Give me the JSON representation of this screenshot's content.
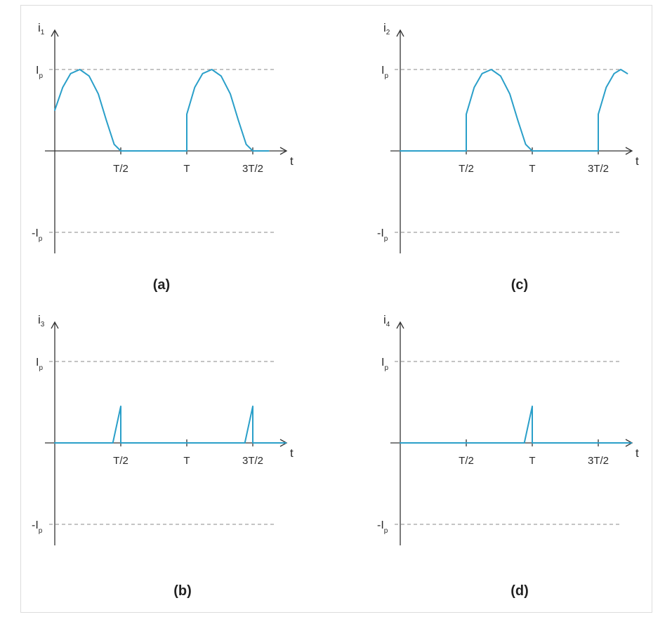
{
  "colors": {
    "axis": "#333333",
    "curve": "#2a9fc9",
    "dashed": "#8a8a8a",
    "text": "#2b2b2b"
  },
  "chart_data": [
    {
      "id": "a",
      "type": "line",
      "caption": "(a)",
      "ylabel_main": "i",
      "ylabel_sub": "1",
      "xlabel": "t",
      "x_ticks": [
        "T/2",
        "T",
        "3T/2"
      ],
      "levels": [
        {
          "main": "I",
          "sub": "p",
          "value": 1
        },
        {
          "main": "-I",
          "sub": "p",
          "value": -1
        }
      ],
      "xlim": [
        0,
        1.75
      ],
      "ylim": [
        -1.25,
        1.4
      ],
      "series": [
        {
          "x": [
            0,
            0.06,
            0.12,
            0.19,
            0.26,
            0.33,
            0.39,
            0.45,
            0.5,
            0.55,
            1.0,
            1.0,
            1.06,
            1.12,
            1.19,
            1.26,
            1.33,
            1.39,
            1.45,
            1.5,
            1.55,
            1.62
          ],
          "y": [
            0.5,
            0.78,
            0.95,
            1.0,
            0.92,
            0.7,
            0.38,
            0.08,
            0,
            0,
            0,
            0.45,
            0.78,
            0.95,
            1.0,
            0.92,
            0.7,
            0.38,
            0.08,
            0,
            0,
            0
          ]
        }
      ]
    },
    {
      "id": "c",
      "type": "line",
      "caption": "(c)",
      "ylabel_main": "i",
      "ylabel_sub": "2",
      "xlabel": "t",
      "x_ticks": [
        "T/2",
        "T",
        "3T/2"
      ],
      "levels": [
        {
          "main": "I",
          "sub": "p",
          "value": 1
        },
        {
          "main": "-I",
          "sub": "p",
          "value": -1
        }
      ],
      "xlim": [
        0,
        1.75
      ],
      "ylim": [
        -1.25,
        1.4
      ],
      "series": [
        {
          "x": [
            0,
            0.5,
            0.5,
            0.56,
            0.62,
            0.69,
            0.76,
            0.83,
            0.89,
            0.95,
            1.0,
            1.5,
            1.5,
            1.56,
            1.62,
            1.67,
            1.72
          ],
          "y": [
            0,
            0,
            0.45,
            0.78,
            0.95,
            1.0,
            0.92,
            0.7,
            0.38,
            0.08,
            0,
            0,
            0.45,
            0.78,
            0.95,
            1.0,
            0.95
          ]
        }
      ]
    },
    {
      "id": "b",
      "type": "line",
      "caption": "(b)",
      "ylabel_main": "i",
      "ylabel_sub": "3",
      "xlabel": "t",
      "x_ticks": [
        "T/2",
        "T",
        "3T/2"
      ],
      "levels": [
        {
          "main": "I",
          "sub": "p",
          "value": 1
        },
        {
          "main": "-I",
          "sub": "p",
          "value": -1
        }
      ],
      "xlim": [
        0,
        1.75
      ],
      "ylim": [
        -1.25,
        1.4
      ],
      "series": [
        {
          "x": [
            0,
            0.44,
            0.5,
            0.5,
            1.44,
            1.5,
            1.5,
            1.75
          ],
          "y": [
            0,
            0,
            0.45,
            0,
            0,
            0.45,
            0,
            0
          ]
        }
      ]
    },
    {
      "id": "d",
      "type": "line",
      "caption": "(d)",
      "ylabel_main": "i",
      "ylabel_sub": "4",
      "xlabel": "t",
      "x_ticks": [
        "T/2",
        "T",
        "3T/2"
      ],
      "levels": [
        {
          "main": "I",
          "sub": "p",
          "value": 1
        },
        {
          "main": "-I",
          "sub": "p",
          "value": -1
        }
      ],
      "xlim": [
        0,
        1.75
      ],
      "ylim": [
        -1.25,
        1.4
      ],
      "series": [
        {
          "x": [
            0,
            0.94,
            1.0,
            1.0,
            1.75
          ],
          "y": [
            0,
            0,
            0.45,
            0,
            0
          ]
        }
      ]
    }
  ]
}
